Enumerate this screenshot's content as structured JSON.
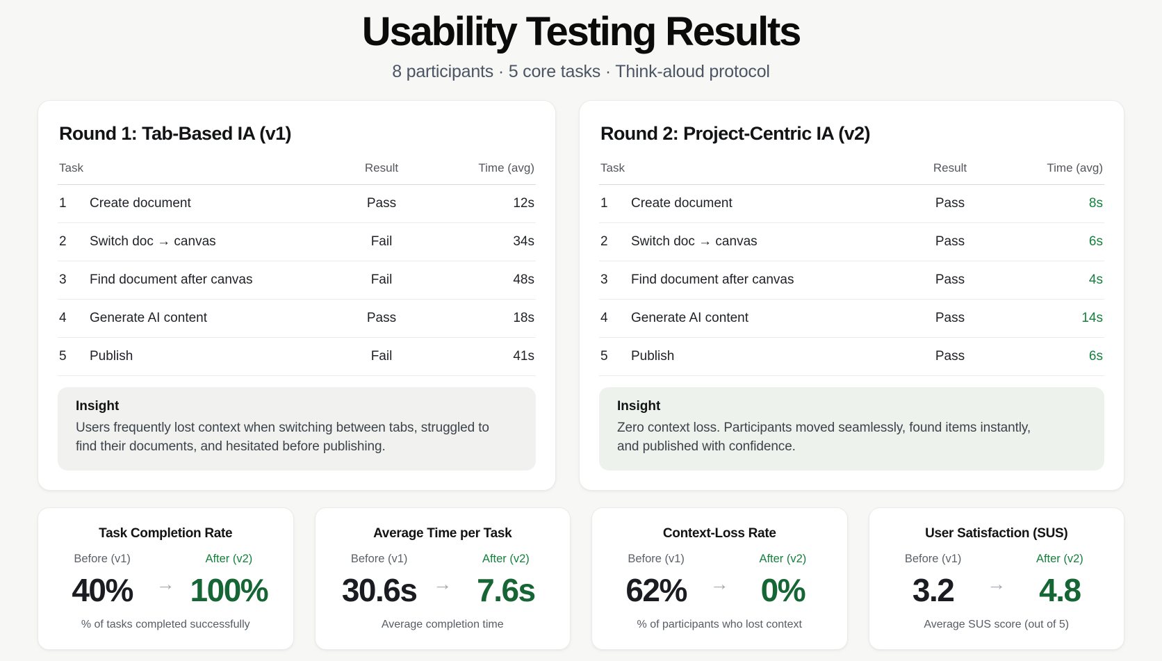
{
  "page": {
    "title": "Usability Testing Results",
    "subtitle": "8 participants · 5 core tasks · Think-aloud protocol"
  },
  "colors": {
    "page_background": "#f7f7f5",
    "card_background": "#ffffff",
    "accent_green": "#15803d",
    "accent_green_dark": "#166534",
    "text_dark": "#1a1c21",
    "text_gray": "#565c64"
  },
  "rounds": [
    {
      "heading": "Round 1: Tab-Based IA (v1)",
      "columns": {
        "task": "Task",
        "result": "Result",
        "time": "Time (avg)"
      },
      "rows": [
        {
          "num": "1",
          "task": "Create document",
          "result": "Pass",
          "time": "12s"
        },
        {
          "num": "2",
          "task": "Switch doc → canvas",
          "result": "Fail",
          "time": "34s"
        },
        {
          "num": "3",
          "task": "Find document after canvas",
          "result": "Fail",
          "time": "48s"
        },
        {
          "num": "4",
          "task": "Generate AI content",
          "result": "Pass",
          "time": "18s"
        },
        {
          "num": "5",
          "task": "Publish",
          "result": "Fail",
          "time": "41s"
        }
      ],
      "insight_title": "Insight",
      "insight_body": "Users frequently lost context when switching between tabs, struggled to find their documents, and hesitated before publishing."
    },
    {
      "heading": "Round 2: Project-Centric IA (v2)",
      "columns": {
        "task": "Task",
        "result": "Result",
        "time": "Time (avg)"
      },
      "rows": [
        {
          "num": "1",
          "task": "Create document",
          "result": "Pass",
          "time": "8s"
        },
        {
          "num": "2",
          "task": "Switch doc → canvas",
          "result": "Pass",
          "time": "6s"
        },
        {
          "num": "3",
          "task": "Find document after canvas",
          "result": "Pass",
          "time": "4s"
        },
        {
          "num": "4",
          "task": "Generate AI content",
          "result": "Pass",
          "time": "14s"
        },
        {
          "num": "5",
          "task": "Publish",
          "result": "Pass",
          "time": "6s"
        }
      ],
      "insight_title": "Insight",
      "insight_body": "Zero context loss. Participants moved seamlessly, found items instantly, and published with confidence."
    }
  ],
  "metrics": [
    {
      "title": "Task Completion Rate",
      "before_label": "Before (v1)",
      "after_label": "After (v2)",
      "before_value": "40%",
      "after_value": "100%",
      "arrow": "→",
      "caption": "% of tasks completed successfully"
    },
    {
      "title": "Average Time per Task",
      "before_label": "Before (v1)",
      "after_label": "After (v2)",
      "before_value": "30.6s",
      "after_value": "7.6s",
      "arrow": "→",
      "caption": "Average completion time"
    },
    {
      "title": "Context-Loss Rate",
      "before_label": "Before (v1)",
      "after_label": "After (v2)",
      "before_value": "62%",
      "after_value": "0%",
      "arrow": "→",
      "caption": "% of participants who lost context"
    },
    {
      "title": "User Satisfaction (SUS)",
      "before_label": "Before (v1)",
      "after_label": "After (v2)",
      "before_value": "3.2",
      "after_value": "4.8",
      "arrow": "→",
      "caption": "Average SUS score (out of 5)"
    }
  ]
}
